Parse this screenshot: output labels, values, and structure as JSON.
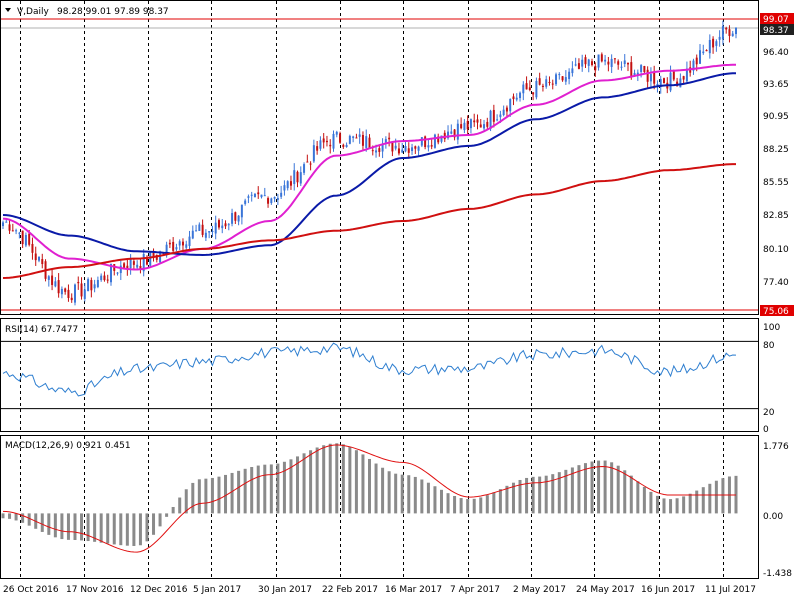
{
  "main": {
    "symbol_label": "V,Daily",
    "ohlc_text": "98.28 99.01 97.89 98.37",
    "menu_icon": "triangle-down-icon",
    "price_ticks": [
      "96.40",
      "93.65",
      "90.95",
      "88.25",
      "85.55",
      "82.85",
      "80.10",
      "77.40"
    ],
    "badge_high": "99.07",
    "badge_last": "98.37",
    "badge_low": "75.06"
  },
  "rsi": {
    "label": "RSI(14) 67.7477",
    "ticks": [
      "100",
      "80",
      "20",
      "0"
    ]
  },
  "macd": {
    "label": "MACD(12,26,9) 0.921 0.451",
    "ticks": [
      "1.776",
      "0.00",
      "-1.438"
    ]
  },
  "dates": [
    "26 Oct 2016",
    "17 Nov 2016",
    "12 Dec 2016",
    "5 Jan 2017",
    "30 Jan 2017",
    "22 Feb 2017",
    "16 Mar 2017",
    "7 Apr 2017",
    "2 May 2017",
    "24 May 2017",
    "16 Jun 2017",
    "11 Jul 2017"
  ],
  "colors": {
    "bull": "#3a75d8",
    "bear": "#c41010",
    "ma_fast": "#e020d0",
    "ma_mid": "#0a1aa8",
    "ma_slow": "#d01010",
    "rsi": "#2f7fd0",
    "macd_hist": "#8a8a8a",
    "macd_signal": "#e01010",
    "badge_red": "#e00000",
    "badge_dark": "#202020",
    "grid": "#000000"
  },
  "chart_data": [
    {
      "type": "candlestick",
      "title": "V,Daily",
      "ylim": [
        75.06,
        99.07
      ],
      "x": [
        "26 Oct 2016",
        "17 Nov 2016",
        "12 Dec 2016",
        "5 Jan 2017",
        "30 Jan 2017",
        "22 Feb 2017",
        "16 Mar 2017",
        "7 Apr 2017",
        "2 May 2017",
        "24 May 2017",
        "16 Jun 2017",
        "11 Jul 2017"
      ],
      "close": [
        82.3,
        76.5,
        79.0,
        81.5,
        84.5,
        89.2,
        88.6,
        90.2,
        93.4,
        95.5,
        94.0,
        98.37
      ],
      "series": [
        {
          "name": "MA fast",
          "values": [
            82.6,
            79.3,
            78.4,
            80.1,
            82.4,
            87.8,
            89.0,
            89.5,
            92.0,
            94.0,
            94.8,
            95.3
          ]
        },
        {
          "name": "MA mid",
          "values": [
            82.9,
            81.2,
            79.9,
            79.6,
            80.4,
            84.5,
            87.6,
            88.6,
            90.8,
            92.6,
            93.6,
            94.6
          ]
        },
        {
          "name": "MA slow",
          "values": [
            77.7,
            78.6,
            79.3,
            80.1,
            80.8,
            81.6,
            82.4,
            83.4,
            84.6,
            85.7,
            86.6,
            87.1
          ]
        }
      ]
    },
    {
      "type": "line",
      "title": "RSI(14) 67.7477",
      "ylim": [
        0,
        100
      ],
      "x": [
        "26 Oct 2016",
        "17 Nov 2016",
        "12 Dec 2016",
        "5 Jan 2017",
        "30 Jan 2017",
        "22 Feb 2017",
        "16 Mar 2017",
        "7 Apr 2017",
        "2 May 2017",
        "24 May 2017",
        "16 Jun 2017",
        "11 Jul 2017"
      ],
      "values": [
        52,
        35,
        55,
        62,
        70,
        74,
        55,
        56,
        68,
        72,
        53,
        67.75
      ]
    },
    {
      "type": "bar",
      "title": "MACD(12,26,9) 0.921 0.451",
      "ylim": [
        -1.438,
        1.776
      ],
      "x": [
        "26 Oct 2016",
        "17 Nov 2016",
        "12 Dec 2016",
        "5 Jan 2017",
        "30 Jan 2017",
        "22 Feb 2017",
        "16 Mar 2017",
        "7 Apr 2017",
        "2 May 2017",
        "24 May 2017",
        "16 Jun 2017",
        "11 Jul 2017"
      ],
      "series": [
        {
          "name": "MACD",
          "values": [
            -0.12,
            -0.65,
            -0.8,
            0.85,
            1.2,
            1.72,
            0.95,
            0.35,
            0.9,
            1.3,
            0.35,
            0.921
          ]
        },
        {
          "name": "Signal",
          "values": [
            0.05,
            -0.45,
            -0.95,
            0.25,
            0.95,
            1.68,
            1.25,
            0.4,
            0.75,
            1.15,
            0.45,
            0.451
          ]
        }
      ]
    }
  ]
}
